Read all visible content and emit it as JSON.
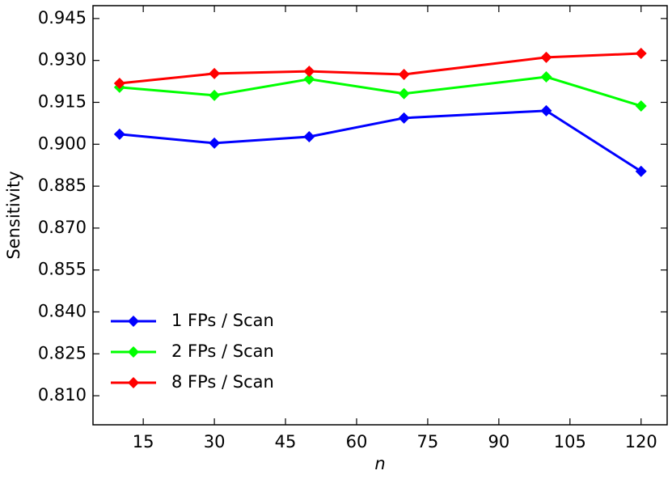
{
  "chart_data": {
    "type": "line",
    "x_label": "n",
    "y_label": "Sensitivity",
    "x": [
      10,
      30,
      50,
      70,
      100,
      120
    ],
    "series": [
      {
        "name": "1 FPs / Scan",
        "color": "#0000ff",
        "values": [
          0.9036,
          0.9004,
          0.9027,
          0.9094,
          0.912,
          0.8903
        ]
      },
      {
        "name": "2 FPs / Scan",
        "color": "#00ff00",
        "values": [
          0.9204,
          0.9175,
          0.9233,
          0.9181,
          0.9241,
          0.9137
        ]
      },
      {
        "name": "8 FPs / Scan",
        "color": "#ff0000",
        "values": [
          0.9218,
          0.9253,
          0.9261,
          0.925,
          0.9311,
          0.9325
        ]
      }
    ],
    "xlim": [
      4.4,
      125.5
    ],
    "xticks": [
      15,
      30,
      45,
      60,
      75,
      90,
      105,
      120
    ],
    "ylim": [
      0.7996,
      0.9496
    ],
    "yticks": [
      {
        "value": 0.81,
        "label": "0.810"
      },
      {
        "value": 0.825,
        "label": "0.825"
      },
      {
        "value": 0.84,
        "label": "0.840"
      },
      {
        "value": 0.855,
        "label": "0.855"
      },
      {
        "value": 0.87,
        "label": "0.870"
      },
      {
        "value": 0.885,
        "label": "0.885"
      },
      {
        "value": 0.9,
        "label": "0.900"
      },
      {
        "value": 0.915,
        "label": "0.915"
      },
      {
        "value": 0.93,
        "label": "0.930"
      },
      {
        "value": 0.945,
        "label": "0.945"
      }
    ],
    "legend": "lower left",
    "grid": false
  }
}
